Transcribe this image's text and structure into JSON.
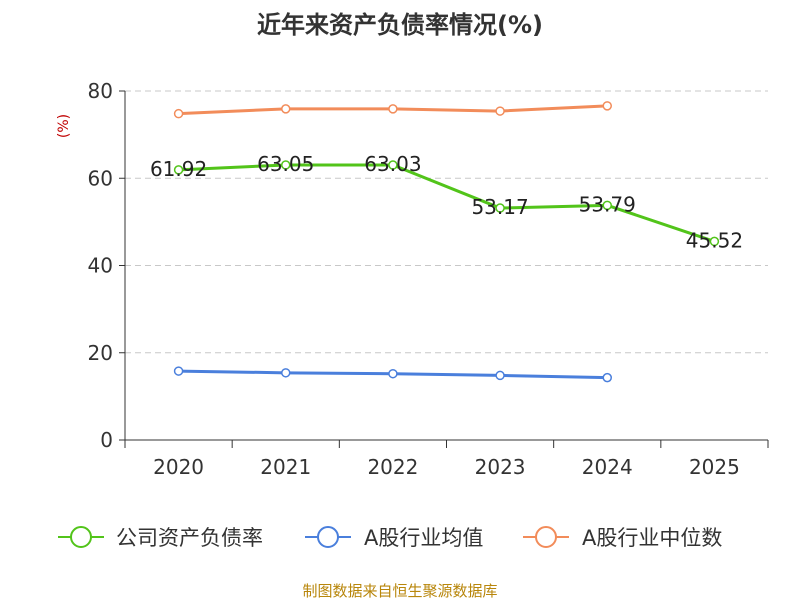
{
  "chart_data": {
    "type": "line",
    "title": "近年来资产负债率情况(%)",
    "ylabel": "(%)",
    "ylim": [
      0,
      80
    ],
    "yticks": [
      0,
      20,
      40,
      60,
      80
    ],
    "categories": [
      "2020",
      "2021",
      "2022",
      "2023",
      "2024",
      "2025"
    ],
    "grid": true,
    "legend_position": "bottom",
    "series": [
      {
        "name": "公司资产负债率",
        "color": "#52c41a",
        "values": [
          61.92,
          63.05,
          63.03,
          53.17,
          53.79,
          45.52
        ],
        "labels": [
          "61.92",
          "63.05",
          "63.03",
          "53.17",
          "53.79",
          "45.52"
        ]
      },
      {
        "name": "A股行业均值",
        "color": "#4a7fdc",
        "values": [
          15.8,
          15.4,
          15.2,
          14.8,
          14.3,
          null
        ]
      },
      {
        "name": "A股行业中位数",
        "color": "#f28c5a",
        "values": [
          74.8,
          75.9,
          75.9,
          75.4,
          76.6,
          null
        ]
      }
    ]
  },
  "source": "制图数据来自恒生聚源数据库"
}
